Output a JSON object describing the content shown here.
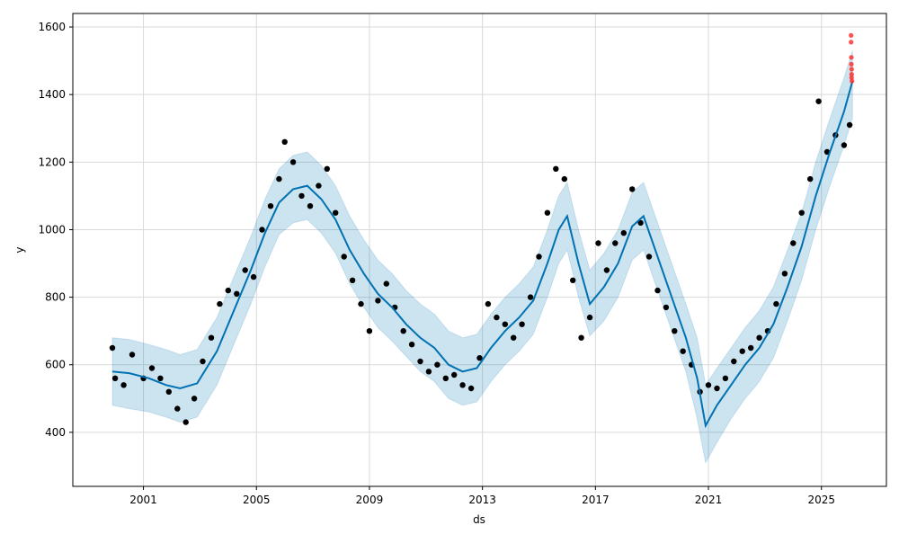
{
  "chart_data": {
    "type": "scatter",
    "title": "",
    "xlabel": "ds",
    "ylabel": "y",
    "xlim": [
      1998.5,
      2027.3
    ],
    "ylim": [
      240,
      1640
    ],
    "x_ticks": [
      2001,
      2005,
      2009,
      2013,
      2017,
      2021,
      2025
    ],
    "x_tick_labels": [
      "2001",
      "2005",
      "2009",
      "2013",
      "2017",
      "2021",
      "2025"
    ],
    "y_ticks": [
      400,
      600,
      800,
      1000,
      1200,
      1400,
      1600
    ],
    "y_tick_labels": [
      "400",
      "600",
      "800",
      "1000",
      "1200",
      "1400",
      "1600"
    ],
    "grid": true,
    "colors": {
      "observed": "#000000",
      "forecast_line": "#0072B2",
      "interval_fill": "#0072B2",
      "recent_points": "#ff3333"
    },
    "series": [
      {
        "role": "observed",
        "x": [
          1999.9,
          2000.0,
          2000.3,
          2000.6,
          2001.0,
          2001.3,
          2001.6,
          2001.9,
          2002.2,
          2002.5,
          2002.8,
          2003.1,
          2003.4,
          2003.7,
          2004.0,
          2004.3,
          2004.6,
          2004.9,
          2005.2,
          2005.5,
          2005.8,
          2006.0,
          2006.3,
          2006.6,
          2006.9,
          2007.2,
          2007.5,
          2007.8,
          2008.1,
          2008.4,
          2008.7,
          2009.0,
          2009.3,
          2009.6,
          2009.9,
          2010.2,
          2010.5,
          2010.8,
          2011.1,
          2011.4,
          2011.7,
          2012.0,
          2012.3,
          2012.6,
          2012.9,
          2013.2,
          2013.5,
          2013.8,
          2014.1,
          2014.4,
          2014.7,
          2015.0,
          2015.3,
          2015.6,
          2015.9,
          2016.2,
          2016.5,
          2016.8,
          2017.1,
          2017.4,
          2017.7,
          2018.0,
          2018.3,
          2018.6,
          2018.9,
          2019.2,
          2019.5,
          2019.8,
          2020.1,
          2020.4,
          2020.7,
          2021.0,
          2021.3,
          2021.6,
          2021.9,
          2022.2,
          2022.5,
          2022.8,
          2023.1,
          2023.4,
          2023.7,
          2024.0,
          2024.3,
          2024.6,
          2024.9,
          2025.2,
          2025.5,
          2025.8,
          2026.0
        ],
        "y": [
          650,
          560,
          540,
          630,
          560,
          590,
          560,
          520,
          470,
          430,
          500,
          610,
          680,
          780,
          820,
          810,
          880,
          860,
          1000,
          1070,
          1150,
          1260,
          1200,
          1100,
          1070,
          1130,
          1180,
          1050,
          920,
          850,
          780,
          700,
          790,
          840,
          770,
          700,
          660,
          610,
          580,
          600,
          560,
          570,
          540,
          530,
          620,
          780,
          740,
          720,
          680,
          720,
          800,
          920,
          1050,
          1180,
          1150,
          850,
          680,
          740,
          960,
          880,
          960,
          990,
          1120,
          1020,
          920,
          820,
          770,
          700,
          640,
          600,
          520,
          540,
          530,
          560,
          610,
          640,
          650,
          680,
          700,
          780,
          870,
          960,
          1050,
          1150,
          1380,
          1230,
          1280,
          1250,
          1310
        ]
      },
      {
        "role": "forecast",
        "x": [
          1999.9,
          2000.5,
          2001.2,
          2001.8,
          2002.3,
          2002.9,
          2003.6,
          2004.2,
          2004.8,
          2005.3,
          2005.8,
          2006.3,
          2006.8,
          2007.3,
          2007.8,
          2008.3,
          2008.8,
          2009.3,
          2009.8,
          2010.3,
          2010.8,
          2011.3,
          2011.8,
          2012.3,
          2012.8,
          2013.3,
          2013.8,
          2014.3,
          2014.8,
          2015.3,
          2015.7,
          2016.0,
          2016.4,
          2016.8,
          2017.3,
          2017.8,
          2018.3,
          2018.7,
          2019.2,
          2019.7,
          2020.2,
          2020.6,
          2020.9,
          2021.3,
          2021.8,
          2022.3,
          2022.8,
          2023.3,
          2023.8,
          2024.3,
          2024.8,
          2025.3,
          2025.8,
          2026.1
        ],
        "yhat": [
          580,
          575,
          560,
          540,
          530,
          545,
          640,
          760,
          880,
          990,
          1080,
          1120,
          1130,
          1090,
          1030,
          940,
          870,
          810,
          770,
          720,
          680,
          650,
          600,
          580,
          590,
          650,
          700,
          740,
          790,
          900,
          1000,
          1040,
          900,
          780,
          830,
          900,
          1010,
          1040,
          920,
          800,
          680,
          560,
          420,
          480,
          540,
          600,
          650,
          720,
          830,
          950,
          1100,
          1230,
          1350,
          1440
        ],
        "lower": [
          480,
          470,
          460,
          445,
          430,
          445,
          540,
          660,
          780,
          890,
          985,
          1020,
          1030,
          990,
          930,
          840,
          770,
          710,
          670,
          625,
          580,
          550,
          500,
          480,
          490,
          550,
          600,
          640,
          690,
          800,
          900,
          940,
          800,
          685,
          730,
          800,
          910,
          940,
          820,
          700,
          580,
          440,
          310,
          370,
          440,
          500,
          550,
          620,
          730,
          850,
          1000,
          1130,
          1250,
          1330
        ],
        "upper": [
          680,
          675,
          660,
          645,
          630,
          645,
          740,
          860,
          980,
          1090,
          1180,
          1220,
          1230,
          1190,
          1130,
          1040,
          970,
          910,
          870,
          820,
          780,
          750,
          700,
          680,
          690,
          750,
          800,
          840,
          890,
          1000,
          1100,
          1140,
          1000,
          880,
          930,
          1000,
          1110,
          1140,
          1020,
          900,
          780,
          680,
          540,
          590,
          650,
          710,
          760,
          830,
          940,
          1050,
          1200,
          1330,
          1450,
          1530
        ]
      },
      {
        "role": "recent",
        "x": [
          2026.05,
          2026.05,
          2026.06,
          2026.06,
          2026.07,
          2026.07,
          2026.07,
          2026.08
        ],
        "y": [
          1575,
          1555,
          1510,
          1490,
          1475,
          1460,
          1450,
          1440
        ]
      }
    ]
  }
}
